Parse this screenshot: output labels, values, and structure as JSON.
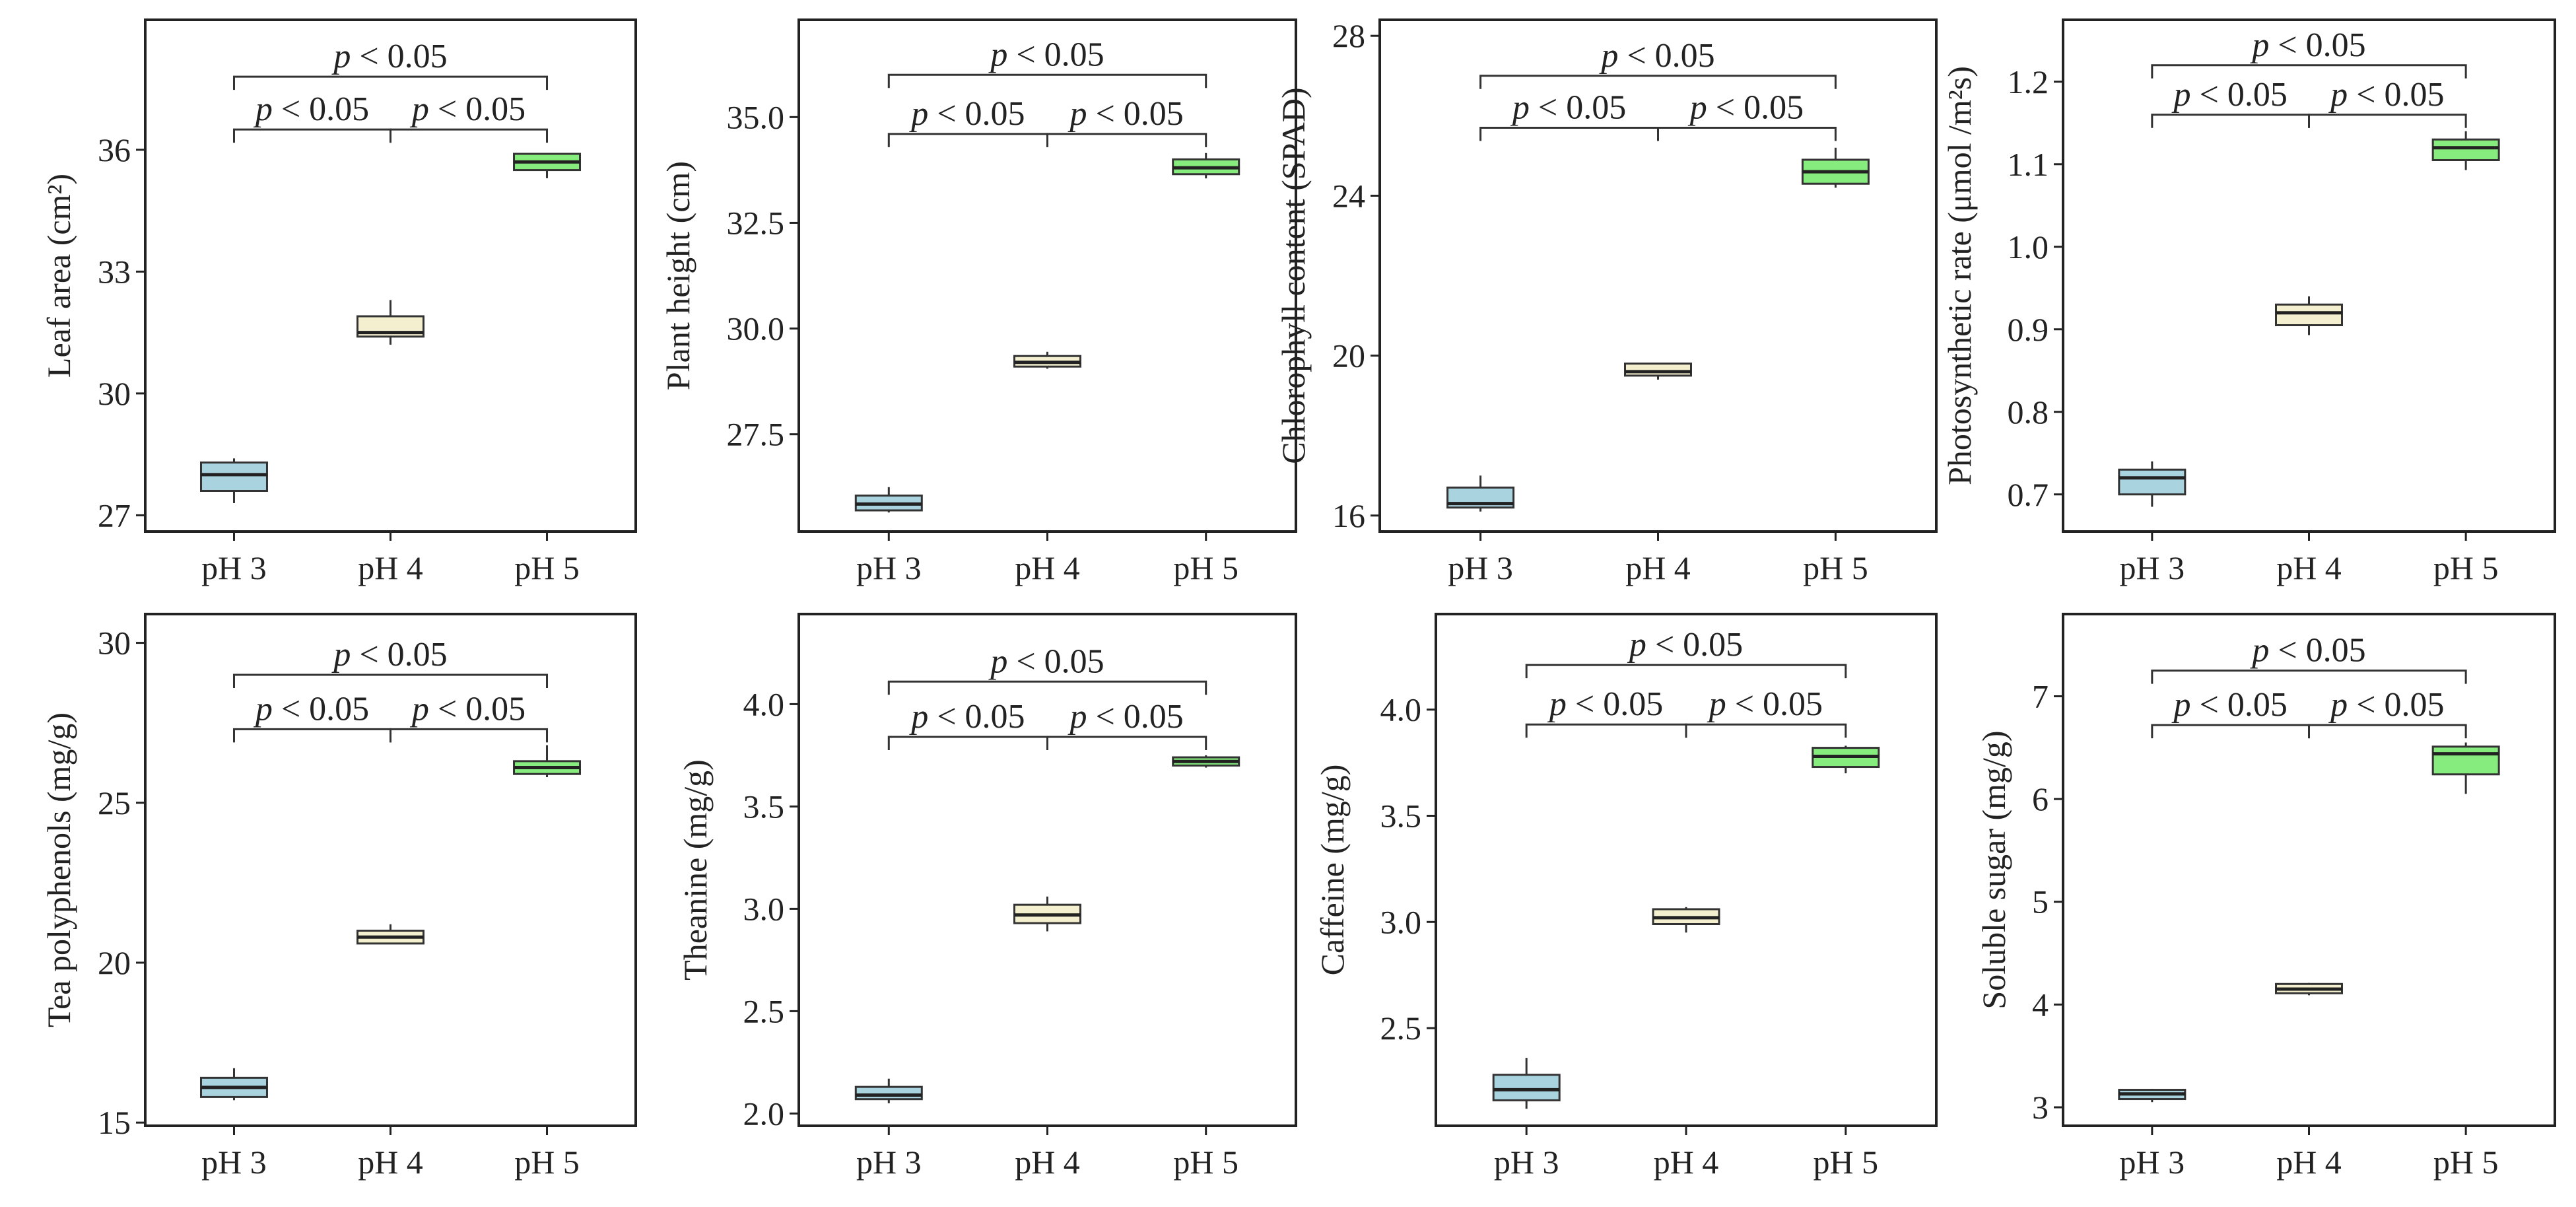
{
  "colors": {
    "pH 3": "#a9d3df",
    "pH 4": "#f4f0cf",
    "pH 5": "#86ec7e",
    "frame": "#222222",
    "bracket": "#333333"
  },
  "chart_data": [
    {
      "type": "box",
      "ylabel": "Leaf area (cm²)",
      "categories": [
        "pH 3",
        "pH 4",
        "pH 5"
      ],
      "yticks": [
        27,
        30,
        33,
        36
      ],
      "ylim": [
        26.6,
        39.2
      ],
      "boxes": [
        {
          "group": "pH 3",
          "min": 27.3,
          "q1": 27.6,
          "median": 28.0,
          "q3": 28.3,
          "max": 28.4
        },
        {
          "group": "pH 4",
          "min": 31.2,
          "q1": 31.4,
          "median": 31.5,
          "q3": 31.9,
          "max": 32.3
        },
        {
          "group": "pH 5",
          "min": 35.3,
          "q1": 35.5,
          "median": 35.7,
          "q3": 35.9,
          "max": 35.9
        }
      ],
      "significance": [
        {
          "from": "pH 3",
          "to": "pH 4",
          "label": "p < 0.05",
          "y": 36.5
        },
        {
          "from": "pH 4",
          "to": "pH 5",
          "label": "p < 0.05",
          "y": 36.5
        },
        {
          "from": "pH 3",
          "to": "pH 5",
          "label": "p < 0.05",
          "y": 37.8
        }
      ]
    },
    {
      "type": "box",
      "ylabel": "Plant height (cm)",
      "categories": [
        "pH 3",
        "pH 4",
        "pH 5"
      ],
      "yticks": [
        "27.5",
        "30.0",
        "32.5",
        "35.0"
      ],
      "ylim": [
        25.2,
        37.3
      ],
      "boxes": [
        {
          "group": "pH 3",
          "min": 25.65,
          "q1": 25.7,
          "median": 25.85,
          "q3": 26.05,
          "max": 26.25
        },
        {
          "group": "pH 4",
          "min": 29.05,
          "q1": 29.1,
          "median": 29.2,
          "q3": 29.35,
          "max": 29.45
        },
        {
          "group": "pH 5",
          "min": 33.55,
          "q1": 33.65,
          "median": 33.8,
          "q3": 34.0,
          "max": 34.15
        }
      ],
      "significance": [
        {
          "from": "pH 3",
          "to": "pH 4",
          "label": "p < 0.05",
          "y": 34.6
        },
        {
          "from": "pH 4",
          "to": "pH 5",
          "label": "p < 0.05",
          "y": 34.6
        },
        {
          "from": "pH 3",
          "to": "pH 5",
          "label": "p < 0.05",
          "y": 36.0
        }
      ]
    },
    {
      "type": "box",
      "ylabel": "Chlorophyll content (SPAD)",
      "categories": [
        "pH 3",
        "pH 4",
        "pH 5"
      ],
      "yticks": [
        16,
        20,
        24,
        28
      ],
      "ylim": [
        15.6,
        28.4
      ],
      "boxes": [
        {
          "group": "pH 3",
          "min": 16.1,
          "q1": 16.2,
          "median": 16.3,
          "q3": 16.7,
          "max": 17.0
        },
        {
          "group": "pH 4",
          "min": 19.4,
          "q1": 19.5,
          "median": 19.6,
          "q3": 19.8,
          "max": 19.8
        },
        {
          "group": "pH 5",
          "min": 24.2,
          "q1": 24.3,
          "median": 24.6,
          "q3": 24.9,
          "max": 25.2
        }
      ],
      "significance": [
        {
          "from": "pH 3",
          "to": "pH 4",
          "label": "p < 0.05",
          "y": 25.7
        },
        {
          "from": "pH 4",
          "to": "pH 5",
          "label": "p < 0.05",
          "y": 25.7
        },
        {
          "from": "pH 3",
          "to": "pH 5",
          "label": "p < 0.05",
          "y": 27.0
        }
      ]
    },
    {
      "type": "box",
      "ylabel": "Photosynthetic rate (μmol /m²s)",
      "categories": [
        "pH 3",
        "pH 4",
        "pH 5"
      ],
      "yticks": [
        "0.7",
        "0.8",
        "0.9",
        "1.0",
        "1.1",
        "1.2"
      ],
      "ylim": [
        0.655,
        1.275
      ],
      "boxes": [
        {
          "group": "pH 3",
          "min": 0.685,
          "q1": 0.7,
          "median": 0.72,
          "q3": 0.73,
          "max": 0.74
        },
        {
          "group": "pH 4",
          "min": 0.893,
          "q1": 0.905,
          "median": 0.92,
          "q3": 0.93,
          "max": 0.94
        },
        {
          "group": "pH 5",
          "min": 1.093,
          "q1": 1.105,
          "median": 1.12,
          "q3": 1.13,
          "max": 1.14
        }
      ],
      "significance": [
        {
          "from": "pH 3",
          "to": "pH 4",
          "label": "p < 0.05",
          "y": 1.16
        },
        {
          "from": "pH 4",
          "to": "pH 5",
          "label": "p < 0.05",
          "y": 1.16
        },
        {
          "from": "pH 3",
          "to": "pH 5",
          "label": "p < 0.05",
          "y": 1.22
        }
      ]
    },
    {
      "type": "box",
      "ylabel": "Tea polyphenols (mg/g)",
      "categories": [
        "pH 3",
        "pH 4",
        "pH 5"
      ],
      "yticks": [
        15,
        20,
        25,
        30
      ],
      "ylim": [
        14.9,
        30.9
      ],
      "boxes": [
        {
          "group": "pH 3",
          "min": 15.7,
          "q1": 15.8,
          "median": 16.1,
          "q3": 16.4,
          "max": 16.7
        },
        {
          "group": "pH 4",
          "min": 20.6,
          "q1": 20.6,
          "median": 20.8,
          "q3": 21.0,
          "max": 21.2
        },
        {
          "group": "pH 5",
          "min": 25.8,
          "q1": 25.9,
          "median": 26.1,
          "q3": 26.3,
          "max": 26.8
        }
      ],
      "significance": [
        {
          "from": "pH 3",
          "to": "pH 4",
          "label": "p < 0.05",
          "y": 27.3
        },
        {
          "from": "pH 4",
          "to": "pH 5",
          "label": "p < 0.05",
          "y": 27.3
        },
        {
          "from": "pH 3",
          "to": "pH 5",
          "label": "p < 0.05",
          "y": 29.0
        }
      ]
    },
    {
      "type": "box",
      "ylabel": "Theanine (mg/g)",
      "categories": [
        "pH 3",
        "pH 4",
        "pH 5"
      ],
      "yticks": [
        "2.0",
        "2.5",
        "3.0",
        "3.5",
        "4.0"
      ],
      "ylim": [
        1.94,
        4.44
      ],
      "boxes": [
        {
          "group": "pH 3",
          "min": 2.05,
          "q1": 2.07,
          "median": 2.09,
          "q3": 2.13,
          "max": 2.17
        },
        {
          "group": "pH 4",
          "min": 2.89,
          "q1": 2.93,
          "median": 2.97,
          "q3": 3.02,
          "max": 3.06
        },
        {
          "group": "pH 5",
          "min": 3.69,
          "q1": 3.7,
          "median": 3.72,
          "q3": 3.74,
          "max": 3.75
        }
      ],
      "significance": [
        {
          "from": "pH 3",
          "to": "pH 4",
          "label": "p < 0.05",
          "y": 3.84
        },
        {
          "from": "pH 4",
          "to": "pH 5",
          "label": "p < 0.05",
          "y": 3.84
        },
        {
          "from": "pH 3",
          "to": "pH 5",
          "label": "p < 0.05",
          "y": 4.11
        }
      ]
    },
    {
      "type": "box",
      "ylabel": "Caffeine (mg/g)",
      "categories": [
        "pH 3",
        "pH 4",
        "pH 5"
      ],
      "yticks": [
        "2.5",
        "3.0",
        "3.5",
        "4.0"
      ],
      "ylim": [
        2.04,
        4.45
      ],
      "boxes": [
        {
          "group": "pH 3",
          "min": 2.12,
          "q1": 2.16,
          "median": 2.21,
          "q3": 2.28,
          "max": 2.36
        },
        {
          "group": "pH 4",
          "min": 2.95,
          "q1": 2.99,
          "median": 3.02,
          "q3": 3.06,
          "max": 3.07
        },
        {
          "group": "pH 5",
          "min": 3.7,
          "q1": 3.73,
          "median": 3.78,
          "q3": 3.82,
          "max": 3.83
        }
      ],
      "significance": [
        {
          "from": "pH 3",
          "to": "pH 4",
          "label": "p < 0.05",
          "y": 3.93
        },
        {
          "from": "pH 4",
          "to": "pH 5",
          "label": "p < 0.05",
          "y": 3.93
        },
        {
          "from": "pH 3",
          "to": "pH 5",
          "label": "p < 0.05",
          "y": 4.21
        }
      ]
    },
    {
      "type": "box",
      "ylabel": "Soluble sugar (mg/g)",
      "categories": [
        "pH 3",
        "pH 4",
        "pH 5"
      ],
      "yticks": [
        3,
        4,
        5,
        6,
        7
      ],
      "ylim": [
        2.82,
        7.8
      ],
      "boxes": [
        {
          "group": "pH 3",
          "min": 3.05,
          "q1": 3.08,
          "median": 3.13,
          "q3": 3.17,
          "max": 3.18
        },
        {
          "group": "pH 4",
          "min": 4.09,
          "q1": 4.11,
          "median": 4.15,
          "q3": 4.2,
          "max": 4.21
        },
        {
          "group": "pH 5",
          "min": 6.05,
          "q1": 6.24,
          "median": 6.44,
          "q3": 6.51,
          "max": 6.55
        }
      ],
      "significance": [
        {
          "from": "pH 3",
          "to": "pH 4",
          "label": "p < 0.05",
          "y": 6.72
        },
        {
          "from": "pH 4",
          "to": "pH 5",
          "label": "p < 0.05",
          "y": 6.72
        },
        {
          "from": "pH 3",
          "to": "pH 5",
          "label": "p < 0.05",
          "y": 7.25
        }
      ]
    }
  ]
}
